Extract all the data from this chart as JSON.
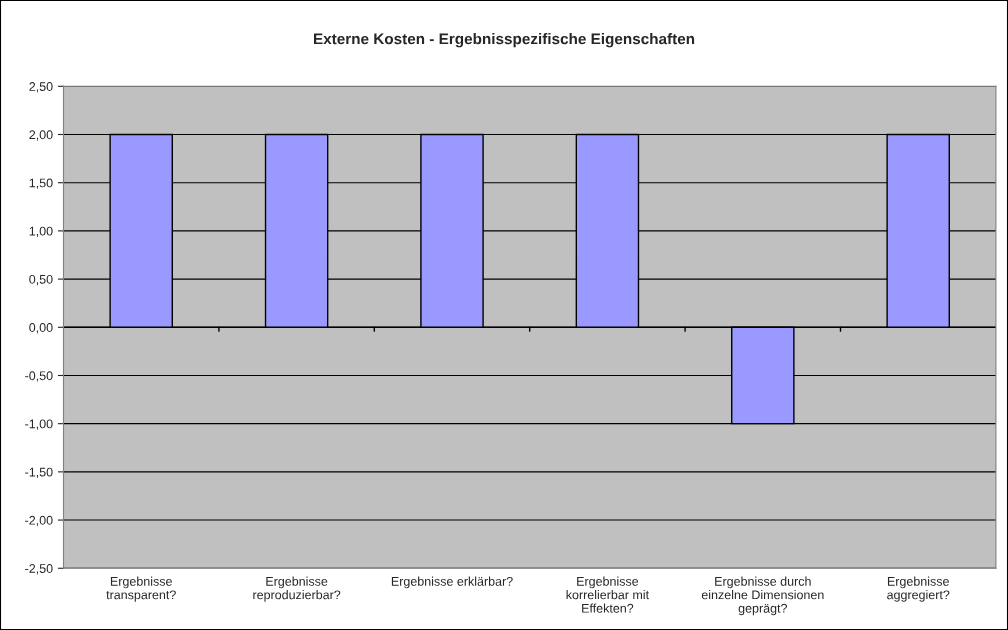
{
  "chart_data": {
    "type": "bar",
    "title": "Externe Kosten - Ergebnisspezifische Eigenschaften",
    "categories": [
      "Ergebnisse\ntransparent?",
      "Ergebnisse\nreproduzierbar?",
      "Ergebnisse erklärbar?",
      "Ergebnisse\nkorrelierbar mit\nEffekten?",
      "Ergebnisse durch\neinzelne Dimensionen\ngeprägt?",
      "Ergebnisse\naggregiert?"
    ],
    "values": [
      2,
      2,
      2,
      2,
      -1,
      2
    ],
    "color": "#9999ff",
    "ylim": [
      -2.5,
      2.5
    ],
    "yticks": [
      {
        "value": -2.5,
        "label": "-2,50"
      },
      {
        "value": -2.0,
        "label": "-2,00"
      },
      {
        "value": -1.5,
        "label": "-1,50"
      },
      {
        "value": -1.0,
        "label": "-1,00"
      },
      {
        "value": -0.5,
        "label": "-0,50"
      },
      {
        "value": 0,
        "label": "0,00"
      },
      {
        "value": 0.5,
        "label": "0,50"
      },
      {
        "value": 1.0,
        "label": "1,00"
      },
      {
        "value": 1.5,
        "label": "1,50"
      },
      {
        "value": 2.0,
        "label": "2,00"
      },
      {
        "value": 2.5,
        "label": "2,50"
      }
    ],
    "grid": "y",
    "legend": false
  }
}
